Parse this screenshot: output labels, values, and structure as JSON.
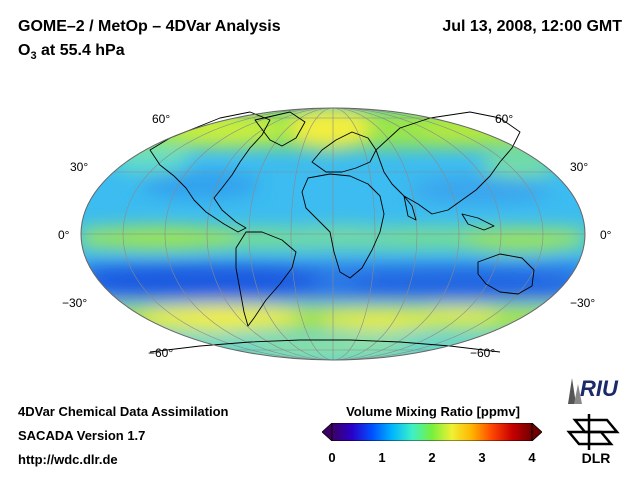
{
  "header": {
    "title": "GOME–2 / MetOp – 4DVar Analysis",
    "subtitle_prefix": "O",
    "subtitle_sub": "3",
    "subtitle_suffix": " at 55.4 hPa",
    "datetime": "Jul 13, 2008, 12:00 GMT"
  },
  "map": {
    "projection": "Mollweide",
    "lat_labels": [
      "60°",
      "30°",
      "0°",
      "−30°",
      "−60°"
    ],
    "field_colors": {
      "low": "#1e64e6",
      "mid_low": "#32b4f0",
      "mid": "#64e6c8",
      "mid_high": "#96e632",
      "high": "#f0f03c"
    },
    "graticule_color": "#8a8a8a",
    "coastline_color": "#000000"
  },
  "footer": {
    "line1": "4DVar Chemical Data Assimilation",
    "line2": "SACADA Version 1.7",
    "line3": "http://wdc.dlr.de"
  },
  "colorbar": {
    "title": "Volume Mixing Ratio [ppmv]",
    "ticks": [
      "0",
      "1",
      "2",
      "3",
      "4"
    ],
    "colors": [
      "#3c0064",
      "#2a00c8",
      "#0050ff",
      "#00b4ff",
      "#3cf0c8",
      "#78f03c",
      "#f0f032",
      "#ffb400",
      "#ff4600",
      "#c80000",
      "#6e0000"
    ]
  },
  "logos": {
    "riu": "RIU",
    "dlr": "DLR"
  }
}
